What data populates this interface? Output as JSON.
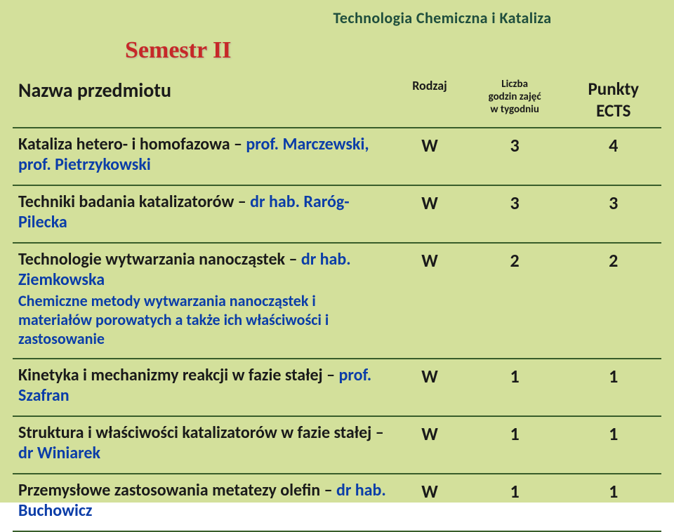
{
  "colors": {
    "slide_bg": "#d3e09b",
    "header_text": "#1f4e3d",
    "semester_text": "#c62828",
    "border": "#385d2a",
    "row_title": "#1a1a1a",
    "row_instructor": "#0b3da8",
    "row_desc": "#0b3da8",
    "cell_text": "#1a1a1a"
  },
  "fontsizes": {
    "header": 22,
    "semester": 34,
    "th_name": 28,
    "th_small": 18,
    "th_liczba": 15,
    "th_ects": 25,
    "row_main": 24,
    "row_desc": 22,
    "cell": 26
  },
  "header_title": "Technologia Chemiczna i Kataliza",
  "semester": "Semestr II",
  "table": {
    "headers": {
      "name": "Nazwa przedmiotu",
      "rodzaj": "Rodzaj",
      "liczba_l1": "Liczba",
      "liczba_l2": "godzin zajęć",
      "liczba_l3": "w tygodniu",
      "ects_l1": "Punkty",
      "ects_l2": "ECTS"
    },
    "rows": [
      {
        "title": "Kataliza hetero- i homofazowa – ",
        "instructor": "prof. Marczewski, prof. Pietrzykowski",
        "desc": "",
        "rodzaj": "W",
        "liczba": "3",
        "ects": "4"
      },
      {
        "title": "Techniki badania katalizatorów – ",
        "instructor": "dr hab. Raróg-Pilecka",
        "desc": "",
        "rodzaj": "W",
        "liczba": "3",
        "ects": "3"
      },
      {
        "title": "Technologie wytwarzania nanocząstek – ",
        "instructor": "dr hab. Ziemkowska",
        "desc": "Chemiczne metody wytwarzania nanocząstek i materiałów porowatych a także ich właściwości i  zastosowanie",
        "rodzaj": "W",
        "liczba": "2",
        "ects": "2"
      },
      {
        "title": "Kinetyka i mechanizmy reakcji w fazie stałej – ",
        "instructor": "prof. Szafran",
        "desc": "",
        "rodzaj": "W",
        "liczba": "1",
        "ects": "1"
      },
      {
        "title": "Struktura i właściwości katalizatorów w fazie stałej – ",
        "instructor": "dr Winiarek",
        "desc": "",
        "rodzaj": "W",
        "liczba": "1",
        "ects": "1"
      },
      {
        "title": "Przemysłowe zastosowania metatezy olefin – ",
        "instructor": "dr hab. Buchowicz",
        "desc": "",
        "rodzaj": "W",
        "liczba": "1",
        "ects": "1"
      }
    ]
  }
}
